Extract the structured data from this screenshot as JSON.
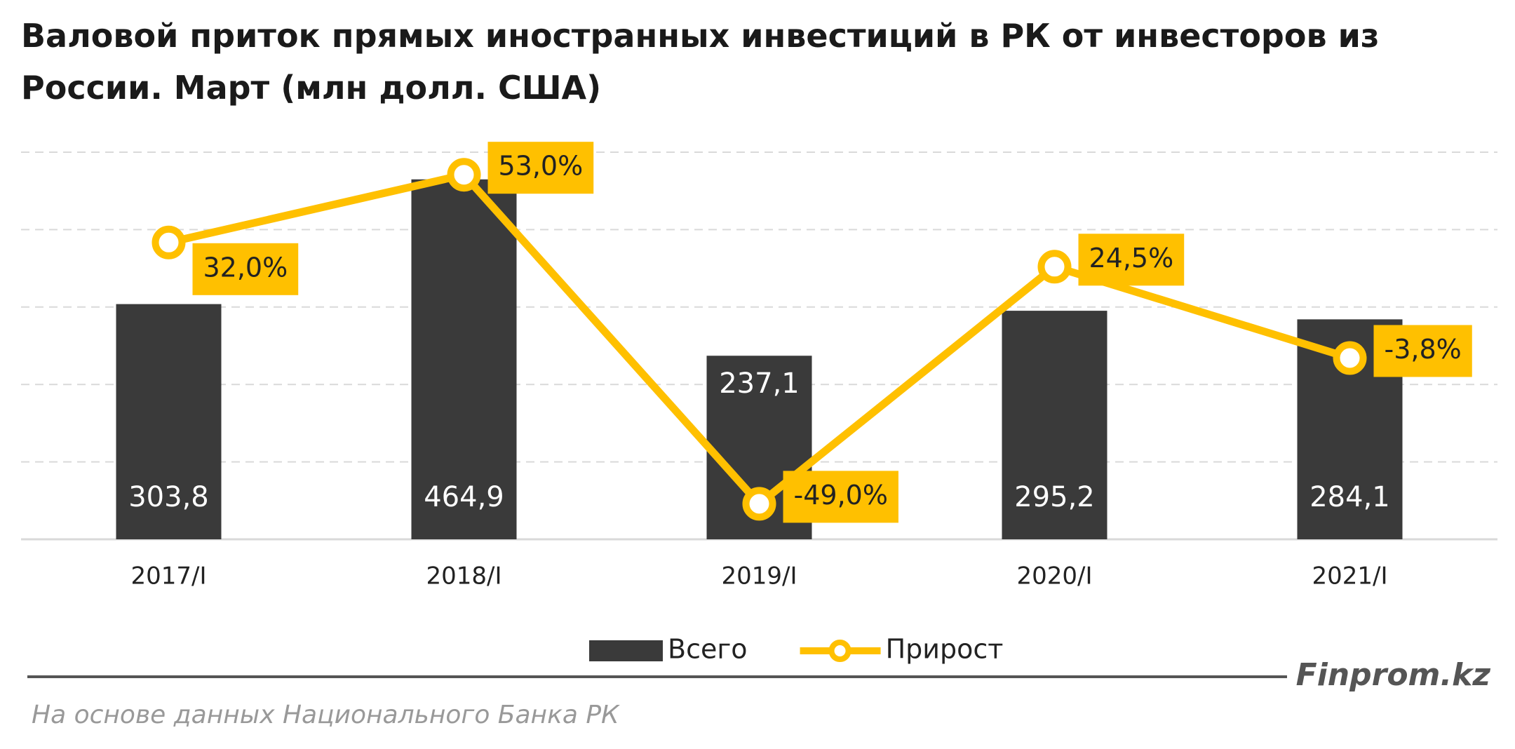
{
  "chart_data": {
    "type": "bar_line",
    "title": "Валовой приток прямых иностранных инвестиций в РК от инвесторов из России. Март (млн долл. США)",
    "categories": [
      "2017/I",
      "2018/I",
      "2019/I",
      "2020/I",
      "2021/I"
    ],
    "series": [
      {
        "name": "Всего",
        "type": "bar",
        "color": "#3a3a3a",
        "values": [
          303.8,
          464.9,
          237.1,
          295.2,
          284.1
        ],
        "value_labels": [
          "303,8",
          "464,9",
          "237,1",
          "295,2",
          "284,1"
        ]
      },
      {
        "name": "Прирост",
        "type": "line",
        "axis": "y2",
        "color": "#ffc000",
        "values": [
          32.0,
          53.0,
          -49.0,
          24.5,
          -3.8
        ],
        "value_labels": [
          "32,0%",
          "53,0%",
          "-49,0%",
          "24,5%",
          "-3,8%"
        ]
      }
    ],
    "ylim": [
      0,
      500
    ],
    "yticks": [
      0,
      100,
      200,
      300,
      400,
      500
    ],
    "y2lim": [
      -60,
      60
    ],
    "grid": true,
    "legend": "bottom",
    "brand": "Finprom.kz",
    "source": "На основе данных Национального Банка РК"
  }
}
